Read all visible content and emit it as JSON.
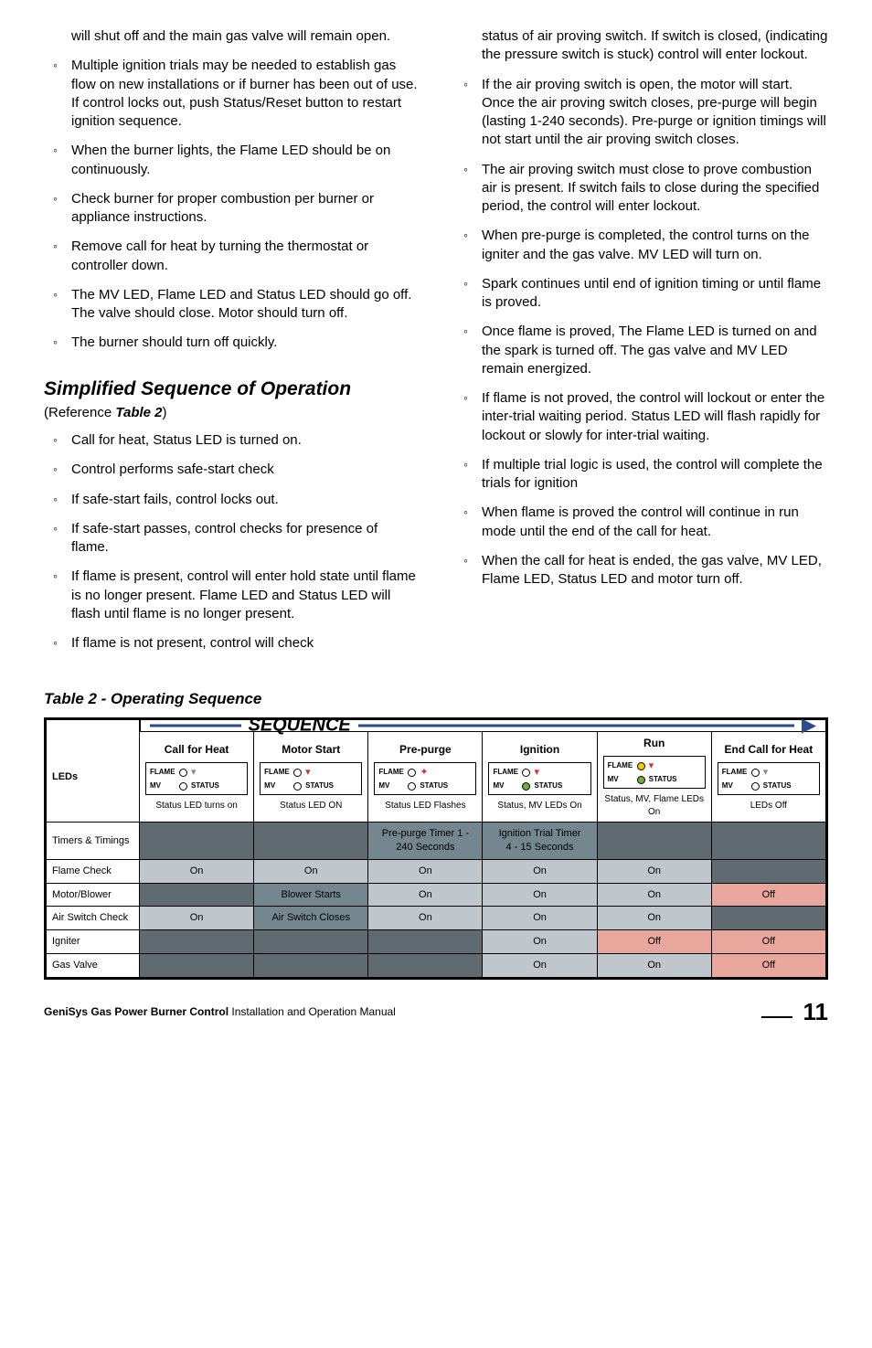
{
  "col1": {
    "intro": "will shut off and the main gas valve will remain open.",
    "bullets_a": [
      "Multiple ignition trials may be needed to establish gas flow on new installations or if burner has been out of use. If control locks out, push Status/Reset button to restart ignition sequence.",
      "When the burner lights, the Flame LED should be on continuously.",
      "Check burner for proper combustion  per burner or appliance instructions.",
      "Remove call for heat by turning the thermostat or controller down.",
      "The MV LED, Flame LED and Status LED should go off.  The valve should close.  Motor should turn off.",
      "The burner should turn off quickly."
    ],
    "heading": "Simplified Sequence of Operation",
    "ref_prefix": "(Reference ",
    "ref_bold": "Table 2",
    "ref_suffix": ")",
    "bullets_b": [
      "Call for heat, Status LED is turned on.",
      "Control performs safe-start check",
      "If safe-start fails, control locks out.",
      "If safe-start passes, control checks for presence of flame.",
      "If flame is present, control will enter hold state until flame is no longer present.  Flame LED and Status LED will flash until flame is no longer present.",
      "If flame is not present, control will check"
    ]
  },
  "col2": {
    "intro": "status of air proving switch.  If switch is closed, (indicating the pressure switch is stuck) control will enter lockout.",
    "bullets": [
      "If the air proving switch is open, the motor will start.  Once the air proving switch closes, pre-purge will begin (lasting 1-240 seconds). Pre-purge or ignition timings will not start until the air proving switch closes.",
      "The air proving switch must close to prove combustion air is present.  If switch fails to close during the specified period, the control will enter lockout.",
      "When pre-purge is completed, the control turns on the igniter and the gas valve.  MV LED will turn on.",
      "Spark continues until end of ignition timing or until flame is proved.",
      "Once flame is proved, The Flame LED is turned on and the spark is turned off. The gas valve and MV LED remain energized.",
      "If flame is not proved, the control will lockout or enter the inter-trial waiting period.  Status LED will flash rapidly for lockout or slowly for inter-trial waiting.",
      "If multiple trial logic is used, the control will complete the trials for ignition",
      "When flame is proved the control will continue in run mode until the end of the call for heat.",
      "When the call for heat is ended, the gas valve, MV LED, Flame LED, Status LED and motor turn off."
    ]
  },
  "table": {
    "caption": "Table 2 - Operating Sequence",
    "sequence_label": "SEQUENCE",
    "row_labels": [
      "LEDs",
      "Timers & Timings",
      "Flame Check",
      "Motor/Blower",
      "Air Switch Check",
      "Igniter",
      "Gas Valve"
    ],
    "stages": [
      {
        "title": "Call for Heat",
        "sub": "Status LED turns on",
        "flame": "off",
        "mv": "off"
      },
      {
        "title": "Motor Start",
        "sub": "Status LED ON",
        "flame": "red",
        "mv": "off"
      },
      {
        "title": "Pre-purge",
        "sub": "Status LED Flashes",
        "flame": "redx",
        "mv": "off"
      },
      {
        "title": "Ignition",
        "sub": "Status, MV LEDs On",
        "flame": "red",
        "mv": "on"
      },
      {
        "title": "Run",
        "sub": "Status, MV, Flame LEDs On",
        "flame": "ony",
        "mv": "on",
        "flamecirc": "on-y"
      },
      {
        "title": "End Call for Heat",
        "sub": "LEDs Off",
        "flame": "off",
        "mv": "off"
      }
    ],
    "timers": {
      "prepurge": "Pre-purge Timer 1 - 240 Seconds",
      "ignition": "Ignition Trial Timer\n4 - 15 Seconds"
    },
    "vals": {
      "on": "On",
      "off": "Off",
      "blower": "Blower Starts",
      "air": "Air Switch Closes"
    },
    "led_labels": {
      "flame": "FLAME",
      "mv": "MV",
      "status": "STATUS"
    }
  },
  "footer": {
    "title_bold": "GeniSys Gas Power Burner Control",
    "title_light": " Installation and Operation Manual",
    "page": "11"
  }
}
